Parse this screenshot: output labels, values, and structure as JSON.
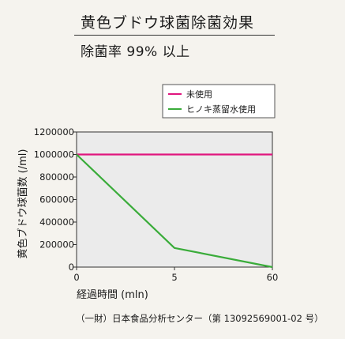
{
  "header": {
    "title": "黄色ブドウ球菌除菌効果",
    "subtitle": "除菌率 99% 以上"
  },
  "footer": {
    "source": "（一財）日本食品分析センター（第 13092569001-02 号）"
  },
  "colors": {
    "background": "#f5f3ee",
    "plot_area": "#ebebeb",
    "untreated": "#e0157e",
    "hinoki": "#3aac3a"
  },
  "chart_data": {
    "type": "line",
    "x_categories": [
      "0",
      "5",
      "60"
    ],
    "xlabel": "経過時間 (mln)",
    "ylabel": "黄色ブドウ球菌数 (/ml)",
    "ylim": [
      0,
      1200000
    ],
    "y_ticks": [
      0,
      200000,
      400000,
      600000,
      800000,
      1000000,
      1200000
    ],
    "y_tick_labels": [
      "0",
      "200000",
      "400000",
      "600000",
      "800000",
      "1000000",
      "1200000"
    ],
    "legend_position": "top-right",
    "grid": false,
    "series": [
      {
        "name": "未使用",
        "color": "#e0157e",
        "values": [
          1000000,
          1000000,
          1000000
        ]
      },
      {
        "name": "ヒノキ蒸留水使用",
        "color": "#3aac3a",
        "values": [
          1000000,
          170000,
          0
        ]
      }
    ]
  }
}
